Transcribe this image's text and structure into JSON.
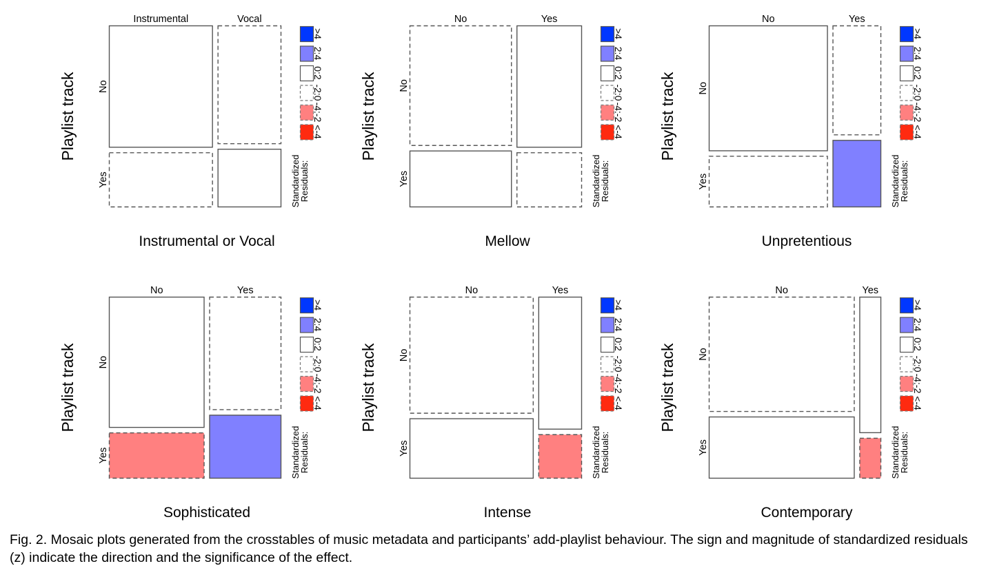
{
  "chart_data": [
    {
      "type": "mosaic",
      "title": "Instrumental or Vocal",
      "ylabel": "Playlist  track",
      "col_labels": [
        "Instrumental",
        "Vocal"
      ],
      "row_labels": [
        "No",
        "Yes"
      ],
      "col_fractions": [
        0.62,
        0.38
      ],
      "row_fractions": [
        [
          0.69,
          0.31
        ],
        [
          0.67,
          0.33
        ]
      ],
      "residual_class": [
        [
          "0:2",
          "-2:0"
        ],
        [
          "-2:0",
          "0:2"
        ]
      ]
    },
    {
      "type": "mosaic",
      "title": "Mellow",
      "ylabel": "Playlist  track",
      "col_labels": [
        "No",
        "Yes"
      ],
      "row_labels": [
        "No",
        "Yes"
      ],
      "col_fractions": [
        0.61,
        0.39
      ],
      "row_fractions": [
        [
          0.68,
          0.32
        ],
        [
          0.69,
          0.31
        ]
      ],
      "residual_class": [
        [
          "-2:0",
          "0:2"
        ],
        [
          "0:2",
          "-2:0"
        ]
      ]
    },
    {
      "type": "mosaic",
      "title": "Unpretentious",
      "ylabel": "Playlist  track",
      "col_labels": [
        "No",
        "Yes"
      ],
      "row_labels": [
        "No",
        "Yes"
      ],
      "col_fractions": [
        0.71,
        0.29
      ],
      "row_fractions": [
        [
          0.71,
          0.29
        ],
        [
          0.62,
          0.38
        ]
      ],
      "residual_class": [
        [
          "0:2",
          "-2:0"
        ],
        [
          "-2:0",
          "2:4"
        ]
      ]
    },
    {
      "type": "mosaic",
      "title": "Sophisticated",
      "ylabel": "Playlist  track",
      "col_labels": [
        "No",
        "Yes"
      ],
      "row_labels": [
        "No",
        "Yes"
      ],
      "col_fractions": [
        0.57,
        0.43
      ],
      "row_fractions": [
        [
          0.74,
          0.26
        ],
        [
          0.64,
          0.36
        ]
      ],
      "residual_class": [
        [
          "0:2",
          "-2:0"
        ],
        [
          "-4:-2",
          "2:4"
        ]
      ]
    },
    {
      "type": "mosaic",
      "title": "Intense",
      "ylabel": "Playlist  track",
      "col_labels": [
        "No",
        "Yes"
      ],
      "row_labels": [
        "No",
        "Yes"
      ],
      "col_fractions": [
        0.74,
        0.26
      ],
      "row_fractions": [
        [
          0.66,
          0.34
        ],
        [
          0.75,
          0.25
        ]
      ],
      "residual_class": [
        [
          "-2:0",
          "0:2"
        ],
        [
          "0:2",
          "-4:-2"
        ]
      ]
    },
    {
      "type": "mosaic",
      "title": "Contemporary",
      "ylabel": "Playlist  track",
      "col_labels": [
        "No",
        "Yes"
      ],
      "row_labels": [
        "No",
        "Yes"
      ],
      "col_fractions": [
        0.87,
        0.13
      ],
      "row_fractions": [
        [
          0.65,
          0.35
        ],
        [
          0.77,
          0.23
        ]
      ],
      "residual_class": [
        [
          "-2:0",
          "0:2"
        ],
        [
          "0:2",
          "-4:-2"
        ]
      ]
    }
  ],
  "legend": {
    "title_line1": "Standardized",
    "title_line2": "Residuals:",
    "entries": [
      {
        "label": ">4",
        "fill": "#0037ff",
        "dashed": false
      },
      {
        "label": "2:4",
        "fill": "#8080ff",
        "dashed": false
      },
      {
        "label": "0:2",
        "fill": "#ffffff",
        "dashed": false
      },
      {
        "label": "-2:0",
        "fill": "#ffffff",
        "dashed": true
      },
      {
        "label": "-4:-2",
        "fill": "#ff8080",
        "dashed": true
      },
      {
        "label": "<-4",
        "fill": "#ff2a10",
        "dashed": true
      }
    ]
  },
  "caption": "Fig. 2. Mosaic plots generated from the crosstables of music metadata and participants’ add-playlist behaviour. The sign and magnitude of standardized residuals (z) indicate the direction and the significance of the effect."
}
